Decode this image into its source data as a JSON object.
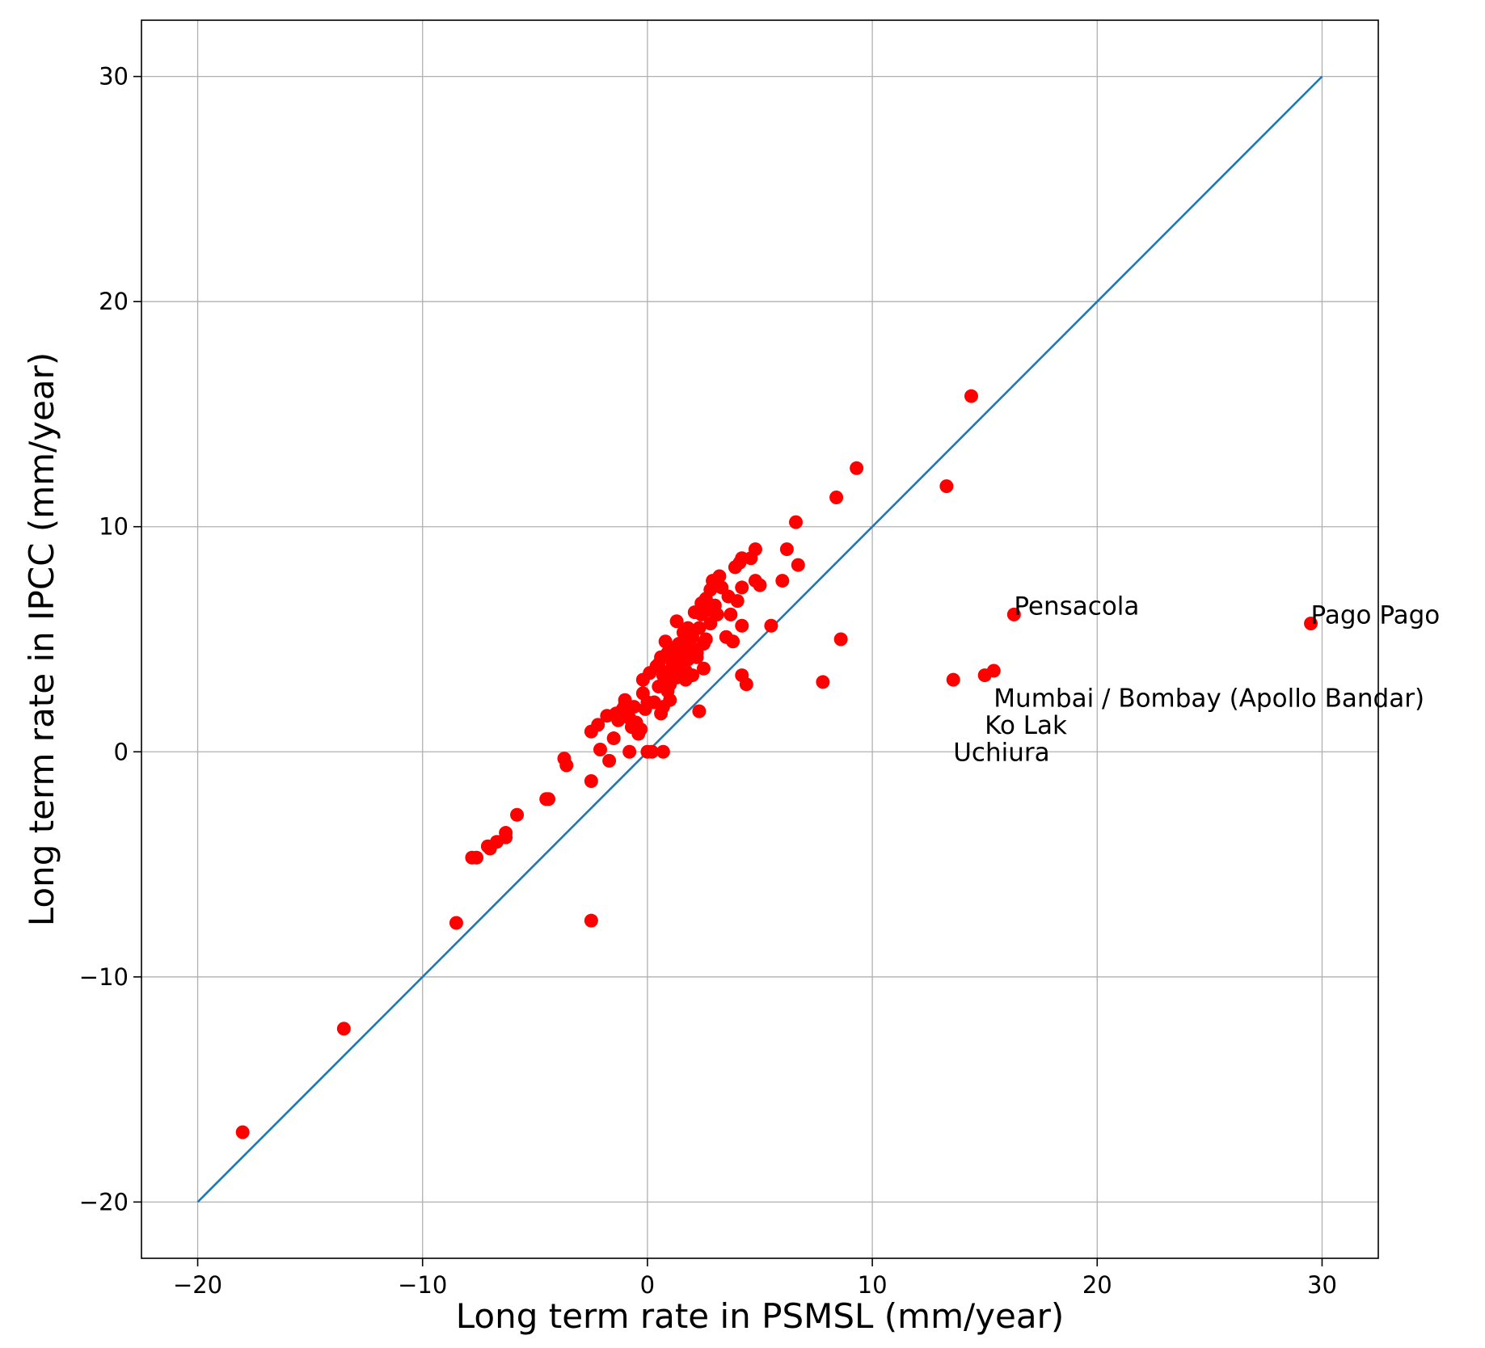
{
  "chart_data": {
    "type": "scatter",
    "title": "",
    "xlabel": "Long term rate in PSMSL (mm/year)",
    "ylabel": "Long term rate in IPCC (mm/year)",
    "xlim": [
      -22.5,
      32.5
    ],
    "ylim": [
      -22.5,
      32.5
    ],
    "xticks": [
      -20,
      -10,
      0,
      10,
      20,
      30
    ],
    "yticks": [
      -20,
      -10,
      0,
      10,
      20,
      30
    ],
    "xtick_labels": [
      "−20",
      "−10",
      "0",
      "10",
      "20",
      "30"
    ],
    "ytick_labels": [
      "−20",
      "−10",
      "0",
      "10",
      "20",
      "30"
    ],
    "grid": true,
    "colors": {
      "points": "#ff0000",
      "line": "#1f77b4"
    },
    "reference_line": {
      "x": [
        -20,
        30
      ],
      "y": [
        -20,
        30
      ]
    },
    "points": [
      [
        -18.0,
        -16.9
      ],
      [
        -13.5,
        -12.3
      ],
      [
        -8.5,
        -7.6
      ],
      [
        -2.5,
        -7.5
      ],
      [
        -7.8,
        -4.7
      ],
      [
        -7.6,
        -4.7
      ],
      [
        -7.1,
        -4.2
      ],
      [
        -7.0,
        -4.3
      ],
      [
        -6.7,
        -4.0
      ],
      [
        -6.3,
        -3.6
      ],
      [
        -6.3,
        -3.8
      ],
      [
        -5.8,
        -2.8
      ],
      [
        -4.5,
        -2.1
      ],
      [
        -4.4,
        -2.1
      ],
      [
        -3.7,
        -0.3
      ],
      [
        -3.6,
        -0.6
      ],
      [
        -2.5,
        -1.3
      ],
      [
        -2.5,
        0.9
      ],
      [
        -2.2,
        1.2
      ],
      [
        -2.1,
        0.1
      ],
      [
        -1.7,
        -0.4
      ],
      [
        -1.8,
        1.6
      ],
      [
        -1.5,
        0.6
      ],
      [
        -1.4,
        1.7
      ],
      [
        -1.3,
        1.4
      ],
      [
        -1.1,
        1.9
      ],
      [
        -1.0,
        2.1
      ],
      [
        -1.0,
        2.3
      ],
      [
        -0.8,
        1.5
      ],
      [
        -0.7,
        1.1
      ],
      [
        -0.8,
        0.0
      ],
      [
        -0.6,
        2.0
      ],
      [
        -0.5,
        1.3
      ],
      [
        -0.4,
        0.8
      ],
      [
        -0.3,
        1.0
      ],
      [
        -0.2,
        2.6
      ],
      [
        -0.1,
        1.9
      ],
      [
        0.0,
        2.2
      ],
      [
        -0.2,
        3.2
      ],
      [
        0.1,
        3.5
      ],
      [
        0.0,
        0.0
      ],
      [
        0.2,
        0.0
      ],
      [
        0.7,
        0.0
      ],
      [
        0.3,
        2.2
      ],
      [
        0.5,
        3.9
      ],
      [
        0.5,
        2.9
      ],
      [
        0.6,
        1.7
      ],
      [
        0.7,
        2.0
      ],
      [
        0.8,
        3.1
      ],
      [
        0.9,
        2.7
      ],
      [
        1.0,
        3.6
      ],
      [
        1.1,
        4.0
      ],
      [
        1.2,
        4.5
      ],
      [
        1.3,
        3.3
      ],
      [
        1.3,
        5.8
      ],
      [
        1.4,
        4.8
      ],
      [
        1.5,
        3.9
      ],
      [
        1.5,
        4.3
      ],
      [
        1.6,
        5.3
      ],
      [
        1.7,
        3.6
      ],
      [
        1.8,
        4.1
      ],
      [
        1.9,
        5.0
      ],
      [
        2.0,
        3.4
      ],
      [
        2.0,
        4.6
      ],
      [
        2.1,
        6.2
      ],
      [
        2.2,
        4.2
      ],
      [
        2.3,
        5.5
      ],
      [
        2.3,
        1.8
      ],
      [
        2.4,
        6.6
      ],
      [
        2.4,
        6.1
      ],
      [
        2.5,
        4.8
      ],
      [
        2.5,
        3.7
      ],
      [
        2.6,
        6.8
      ],
      [
        2.7,
        6.3
      ],
      [
        2.8,
        7.2
      ],
      [
        2.9,
        7.6
      ],
      [
        3.0,
        6.5
      ],
      [
        3.1,
        6.1
      ],
      [
        3.2,
        7.8
      ],
      [
        3.3,
        7.3
      ],
      [
        3.5,
        5.1
      ],
      [
        3.6,
        6.9
      ],
      [
        3.7,
        6.1
      ],
      [
        3.8,
        4.9
      ],
      [
        3.9,
        8.2
      ],
      [
        4.0,
        6.7
      ],
      [
        4.1,
        8.4
      ],
      [
        4.2,
        8.6
      ],
      [
        4.2,
        7.3
      ],
      [
        4.2,
        5.6
      ],
      [
        4.2,
        3.4
      ],
      [
        4.4,
        3.0
      ],
      [
        4.6,
        8.6
      ],
      [
        4.8,
        9.0
      ],
      [
        4.8,
        7.6
      ],
      [
        5.0,
        7.4
      ],
      [
        5.5,
        5.6
      ],
      [
        6.0,
        7.6
      ],
      [
        6.2,
        9.0
      ],
      [
        6.6,
        10.2
      ],
      [
        6.7,
        8.3
      ],
      [
        7.8,
        3.1
      ],
      [
        8.4,
        11.3
      ],
      [
        8.6,
        5.0
      ],
      [
        9.3,
        12.6
      ],
      [
        13.3,
        11.8
      ],
      [
        13.6,
        3.2
      ],
      [
        14.4,
        15.8
      ],
      [
        15.0,
        3.4
      ],
      [
        15.4,
        3.6
      ],
      [
        16.3,
        6.1
      ],
      [
        29.5,
        5.7
      ],
      [
        0.4,
        3.8
      ],
      [
        0.6,
        4.2
      ],
      [
        0.8,
        4.9
      ],
      [
        1.0,
        3.0
      ],
      [
        1.2,
        3.8
      ],
      [
        1.4,
        4.2
      ],
      [
        1.6,
        4.7
      ],
      [
        1.8,
        5.5
      ],
      [
        2.0,
        5.1
      ],
      [
        2.2,
        4.4
      ],
      [
        2.6,
        5.0
      ],
      [
        1.0,
        2.3
      ],
      [
        0.9,
        4.4
      ],
      [
        1.7,
        3.2
      ],
      [
        2.8,
        5.7
      ],
      [
        1.5,
        3.5
      ],
      [
        0.7,
        3.4
      ],
      [
        1.1,
        4.6
      ],
      [
        1.9,
        4.3
      ],
      [
        1.3,
        4.0
      ]
    ],
    "annotations": [
      {
        "text": "Pensacola",
        "x": 16.3,
        "y": 6.1
      },
      {
        "text": "Pago Pago",
        "x": 29.5,
        "y": 5.7
      },
      {
        "text": "Mumbai / Bombay (Apollo Bandar)",
        "x": 15.4,
        "y": 2.0
      },
      {
        "text": "Ko Lak",
        "x": 15.0,
        "y": 0.8
      },
      {
        "text": "Uchiura",
        "x": 13.6,
        "y": -0.4
      }
    ]
  }
}
